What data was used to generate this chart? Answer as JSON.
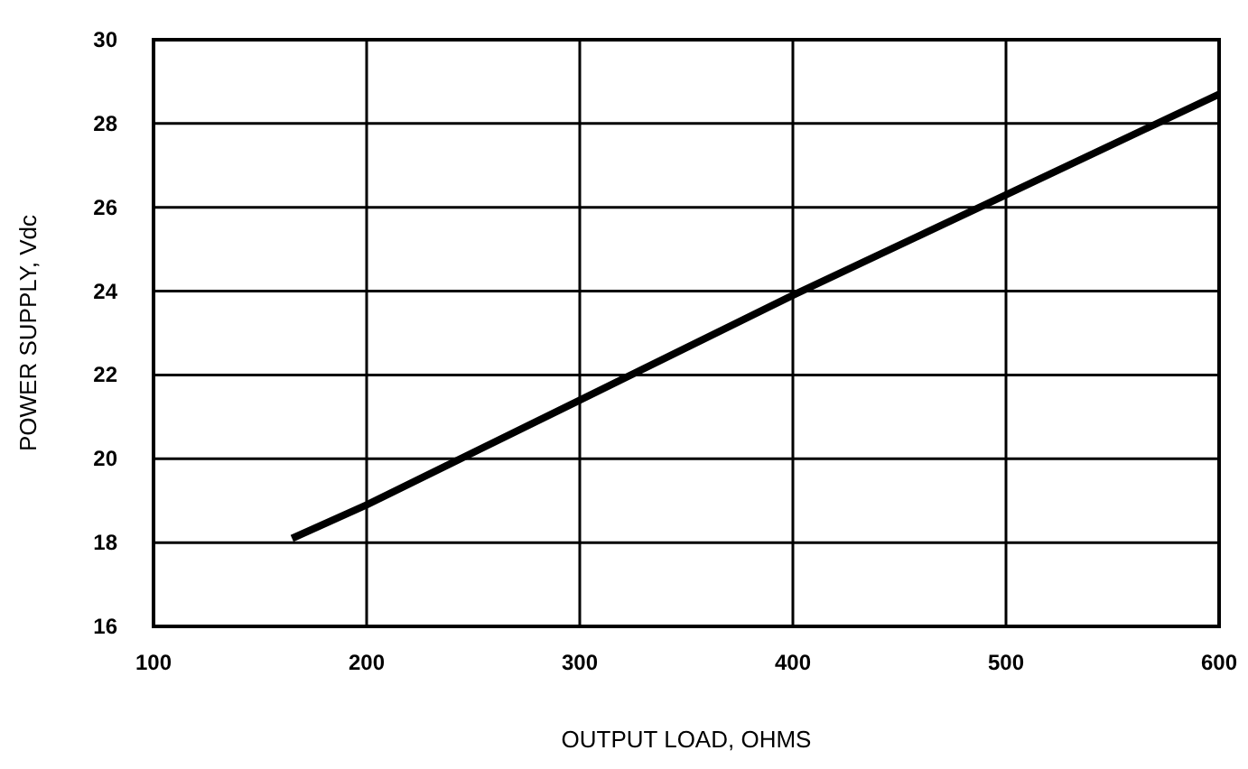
{
  "chart_data": {
    "type": "line",
    "xlabel": "OUTPUT LOAD, OHMS",
    "ylabel": "POWER SUPPLY, Vdc",
    "x": [
      165,
      200,
      300,
      400,
      500,
      600
    ],
    "series": [
      {
        "color": "#000000",
        "values": [
          18.1,
          18.9,
          21.4,
          23.9,
          26.3,
          28.7
        ]
      }
    ],
    "xlim": [
      100,
      600
    ],
    "xticks": [
      100,
      200,
      300,
      400,
      500,
      600
    ],
    "ylim": [
      16,
      30
    ],
    "yticks": [
      16,
      18,
      20,
      22,
      24,
      26,
      28,
      30
    ],
    "grid": true,
    "marker": "none",
    "line_style": "solid"
  }
}
